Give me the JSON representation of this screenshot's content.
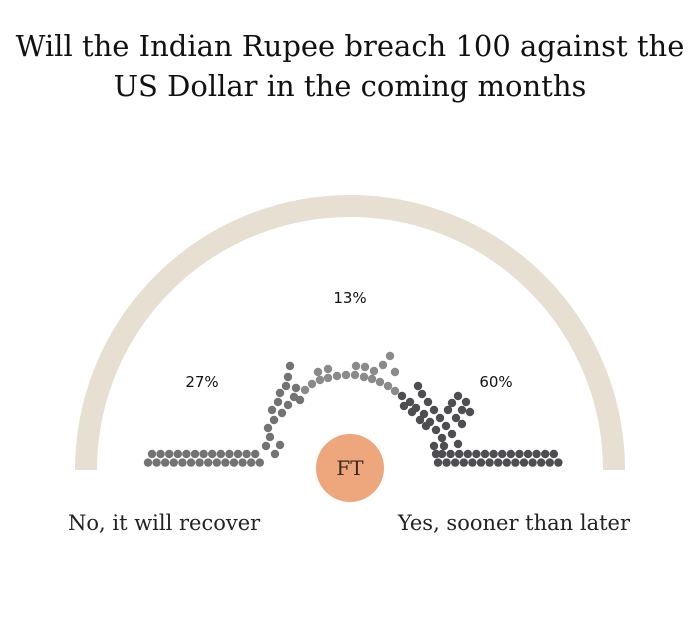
{
  "title_lines": [
    "Will the Indian Rupee breach 100 against the",
    "US Dollar in the coming months"
  ],
  "logo_text": "FT",
  "colors": {
    "arc": "#e7dfd2",
    "no": "#737373",
    "undecided": "#8a8a8a",
    "yes": "#4e4e52",
    "logo": "#eea77c"
  },
  "chart_data": {
    "type": "pie",
    "title": "Will the Indian Rupee breach 100 against the US Dollar in the coming months",
    "categories": [
      "No, it will recover",
      "",
      "Yes, sooner than later"
    ],
    "values": [
      27,
      13,
      60
    ],
    "labels": [
      "27%",
      "13%",
      "60%"
    ],
    "unit": "%"
  }
}
